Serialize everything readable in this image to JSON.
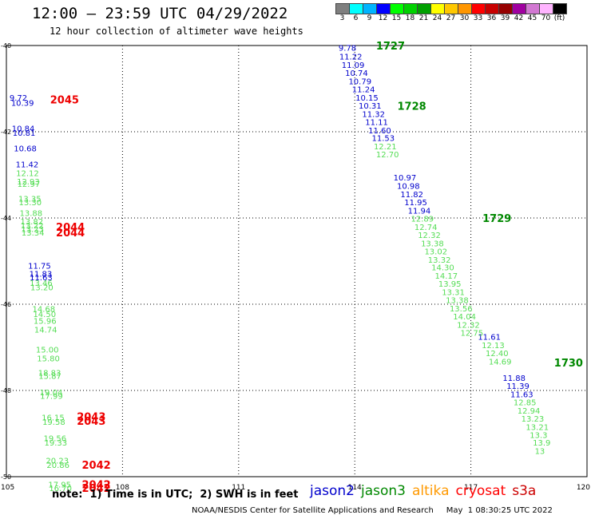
{
  "title": "12:00 – 23:59 UTC 04/29/2022",
  "subtitle": "12 hour collection of altimeter wave heights",
  "colorbar": {
    "labels": [
      "3",
      "6",
      "9",
      "12",
      "15",
      "18",
      "21",
      "24",
      "27",
      "30",
      "33",
      "36",
      "39",
      "42",
      "45",
      "70",
      "(ft)"
    ],
    "colors": [
      "#7f7f7f",
      "#00ffff",
      "#00b4ff",
      "#0000ff",
      "#00ff00",
      "#00d200",
      "#00a000",
      "#ffff00",
      "#ffc800",
      "#ff9600",
      "#ff0000",
      "#c80000",
      "#960000",
      "#a000a0",
      "#d278d2",
      "#ffb4ff",
      "#000000"
    ]
  },
  "note": "note:  1) Time is in UTC;  2) SWH is in feet",
  "missions": [
    {
      "name": "jason2",
      "color": "#0000cc"
    },
    {
      "name": "jason3",
      "color": "#008800"
    },
    {
      "name": "altika",
      "color": "#ff9900"
    },
    {
      "name": "cryosat",
      "color": "#ff0000"
    },
    {
      "name": "s3a",
      "color": "#cc0000"
    }
  ],
  "footer": "NOAA/NESDIS Center for Satellite Applications and Research     May  1 08:30:25 UTC 2022",
  "chart_data": {
    "type": "scatter",
    "xlim": [
      105,
      120
    ],
    "ylim": [
      -50,
      -40
    ],
    "x_ticks": [
      "105",
      "108",
      "111",
      "114",
      "117",
      "120"
    ],
    "y_ticks": [
      "-40",
      "-42",
      "-44",
      "-46",
      "-48",
      "-50"
    ],
    "grid": true,
    "series": [
      {
        "name": "jason2",
        "color": "#0000cc",
        "points": [
          {
            "x": 113.58,
            "y": -40.05,
            "v": "9.78"
          },
          {
            "x": 113.6,
            "y": -40.25,
            "v": "11.22"
          },
          {
            "x": 113.66,
            "y": -40.44,
            "v": "11.09"
          },
          {
            "x": 113.75,
            "y": -40.63,
            "v": "10.74"
          },
          {
            "x": 113.84,
            "y": -40.82,
            "v": "10.79"
          },
          {
            "x": 113.93,
            "y": -41.01,
            "v": "11.24"
          },
          {
            "x": 114.02,
            "y": -41.2,
            "v": "10.15"
          },
          {
            "x": 114.1,
            "y": -41.39,
            "v": "10.31"
          },
          {
            "x": 114.19,
            "y": -41.58,
            "v": "11.32"
          },
          {
            "x": 114.27,
            "y": -41.77,
            "v": "11.11"
          },
          {
            "x": 114.35,
            "y": -41.96,
            "v": "11.60"
          },
          {
            "x": 114.44,
            "y": -42.14,
            "v": "11.53"
          },
          {
            "x": 115.0,
            "y": -43.06,
            "v": "10.97"
          },
          {
            "x": 115.09,
            "y": -43.25,
            "v": "10.98"
          },
          {
            "x": 115.18,
            "y": -43.44,
            "v": "11.82"
          },
          {
            "x": 115.28,
            "y": -43.63,
            "v": "11.95"
          },
          {
            "x": 115.37,
            "y": -43.82,
            "v": "11.94"
          },
          {
            "x": 117.18,
            "y": -46.75,
            "v": "11.61"
          },
          {
            "x": 117.82,
            "y": -47.7,
            "v": "11.88"
          },
          {
            "x": 117.92,
            "y": -47.89,
            "v": "11.39"
          },
          {
            "x": 118.02,
            "y": -48.08,
            "v": "11.63"
          },
          {
            "x": 105.08,
            "y": -41.2,
            "v": "9.72"
          },
          {
            "x": 105.12,
            "y": -41.32,
            "v": "10.39"
          },
          {
            "x": 105.14,
            "y": -41.92,
            "v": "10.84"
          },
          {
            "x": 105.16,
            "y": -42.02,
            "v": "10.81"
          },
          {
            "x": 105.19,
            "y": -42.38,
            "v": "10.68"
          },
          {
            "x": 105.24,
            "y": -42.75,
            "v": "11.42"
          },
          {
            "x": 105.56,
            "y": -45.1,
            "v": "11.75"
          },
          {
            "x": 105.59,
            "y": -45.29,
            "v": "11.83"
          },
          {
            "x": 105.6,
            "y": -45.37,
            "v": "11.63"
          }
        ]
      },
      {
        "name": "jason3",
        "color": "#55dd55",
        "points": [
          {
            "x": 114.49,
            "y": -42.33,
            "v": "12.21"
          },
          {
            "x": 114.55,
            "y": -42.52,
            "v": "12.70"
          },
          {
            "x": 115.45,
            "y": -44.01,
            "v": "12.89"
          },
          {
            "x": 115.54,
            "y": -44.2,
            "v": "12.74"
          },
          {
            "x": 115.63,
            "y": -44.39,
            "v": "12.32"
          },
          {
            "x": 115.71,
            "y": -44.58,
            "v": "13.38"
          },
          {
            "x": 115.8,
            "y": -44.77,
            "v": "13.02"
          },
          {
            "x": 115.89,
            "y": -44.96,
            "v": "13.32"
          },
          {
            "x": 115.98,
            "y": -45.14,
            "v": "14.30"
          },
          {
            "x": 116.07,
            "y": -45.33,
            "v": "14.17"
          },
          {
            "x": 116.16,
            "y": -45.52,
            "v": "13.95"
          },
          {
            "x": 116.25,
            "y": -45.71,
            "v": "13.31"
          },
          {
            "x": 116.35,
            "y": -45.9,
            "v": "13.38"
          },
          {
            "x": 116.45,
            "y": -46.09,
            "v": "13.56"
          },
          {
            "x": 116.54,
            "y": -46.28,
            "v": "14.04"
          },
          {
            "x": 116.64,
            "y": -46.47,
            "v": "12.32"
          },
          {
            "x": 116.73,
            "y": -46.66,
            "v": "12.75"
          },
          {
            "x": 117.28,
            "y": -46.94,
            "v": "12.13"
          },
          {
            "x": 117.38,
            "y": -47.13,
            "v": "12.40"
          },
          {
            "x": 117.46,
            "y": -47.32,
            "v": "14.69"
          },
          {
            "x": 118.1,
            "y": -48.27,
            "v": "12.85"
          },
          {
            "x": 118.2,
            "y": -48.46,
            "v": "12.94"
          },
          {
            "x": 118.3,
            "y": -48.65,
            "v": "13.23"
          },
          {
            "x": 118.42,
            "y": -48.84,
            "v": "13.21"
          },
          {
            "x": 118.52,
            "y": -49.03,
            "v": "13.3"
          },
          {
            "x": 118.6,
            "y": -49.2,
            "v": "13.9"
          },
          {
            "x": 118.65,
            "y": -49.4,
            "v": "13"
          },
          {
            "x": 105.25,
            "y": -42.95,
            "v": "12.12"
          },
          {
            "x": 105.27,
            "y": -43.15,
            "v": "12.93"
          },
          {
            "x": 105.28,
            "y": -43.2,
            "v": "12.97"
          },
          {
            "x": 105.31,
            "y": -43.55,
            "v": "13.35"
          },
          {
            "x": 105.32,
            "y": -43.63,
            "v": "13.30"
          },
          {
            "x": 105.34,
            "y": -43.88,
            "v": "13.88"
          },
          {
            "x": 105.36,
            "y": -44.07,
            "v": "13.82"
          },
          {
            "x": 105.37,
            "y": -44.17,
            "v": "13.22"
          },
          {
            "x": 105.38,
            "y": -44.25,
            "v": "13.23"
          },
          {
            "x": 105.39,
            "y": -44.33,
            "v": "13.34"
          },
          {
            "x": 105.6,
            "y": -45.5,
            "v": "13.46"
          },
          {
            "x": 105.62,
            "y": -45.6,
            "v": "13.20"
          },
          {
            "x": 105.67,
            "y": -46.1,
            "v": "14.68"
          },
          {
            "x": 105.69,
            "y": -46.22,
            "v": "14.50"
          },
          {
            "x": 105.7,
            "y": -46.38,
            "v": "15.96"
          },
          {
            "x": 105.72,
            "y": -46.58,
            "v": "14.74"
          },
          {
            "x": 105.76,
            "y": -47.05,
            "v": "15.00"
          },
          {
            "x": 105.79,
            "y": -47.25,
            "v": "15.80"
          },
          {
            "x": 105.82,
            "y": -47.58,
            "v": "18.83"
          },
          {
            "x": 105.83,
            "y": -47.66,
            "v": "15.87"
          },
          {
            "x": 105.86,
            "y": -48.04,
            "v": "19.04"
          },
          {
            "x": 105.87,
            "y": -48.12,
            "v": "17.99"
          },
          {
            "x": 105.91,
            "y": -48.62,
            "v": "16.15"
          },
          {
            "x": 105.93,
            "y": -48.72,
            "v": "19.58"
          },
          {
            "x": 105.96,
            "y": -49.1,
            "v": "19.56"
          },
          {
            "x": 105.98,
            "y": -49.2,
            "v": "19.33"
          },
          {
            "x": 106.02,
            "y": -49.62,
            "v": "20.23"
          },
          {
            "x": 106.04,
            "y": -49.72,
            "v": "20.86"
          },
          {
            "x": 106.08,
            "y": -50.18,
            "v": "17.95"
          },
          {
            "x": 106.1,
            "y": -50.26,
            "v": "16.70"
          }
        ]
      }
    ],
    "time_labels": [
      {
        "x": 114.55,
        "y": -40.0,
        "text": "1727",
        "color": "#008800"
      },
      {
        "x": 115.1,
        "y": -41.4,
        "text": "1728",
        "color": "#008800"
      },
      {
        "x": 117.3,
        "y": -44.0,
        "text": "1729",
        "color": "#008800"
      },
      {
        "x": 119.15,
        "y": -47.35,
        "text": "1730",
        "color": "#008800"
      },
      {
        "x": 106.13,
        "y": -41.25,
        "text": "2045",
        "color": "#ee0000"
      },
      {
        "x": 106.28,
        "y": -44.2,
        "text": "2044",
        "color": "#ee0000"
      },
      {
        "x": 106.28,
        "y": -44.33,
        "text": "2044",
        "color": "#ee0000"
      },
      {
        "x": 106.82,
        "y": -48.6,
        "text": "2043",
        "color": "#ee0000"
      },
      {
        "x": 106.82,
        "y": -48.7,
        "text": "2043",
        "color": "#ee0000"
      },
      {
        "x": 106.95,
        "y": -49.72,
        "text": "2042",
        "color": "#ee0000"
      },
      {
        "x": 106.95,
        "y": -50.18,
        "text": "2042",
        "color": "#ee0000"
      },
      {
        "x": 106.95,
        "y": -50.26,
        "text": "2042",
        "color": "#ee0000"
      }
    ]
  }
}
